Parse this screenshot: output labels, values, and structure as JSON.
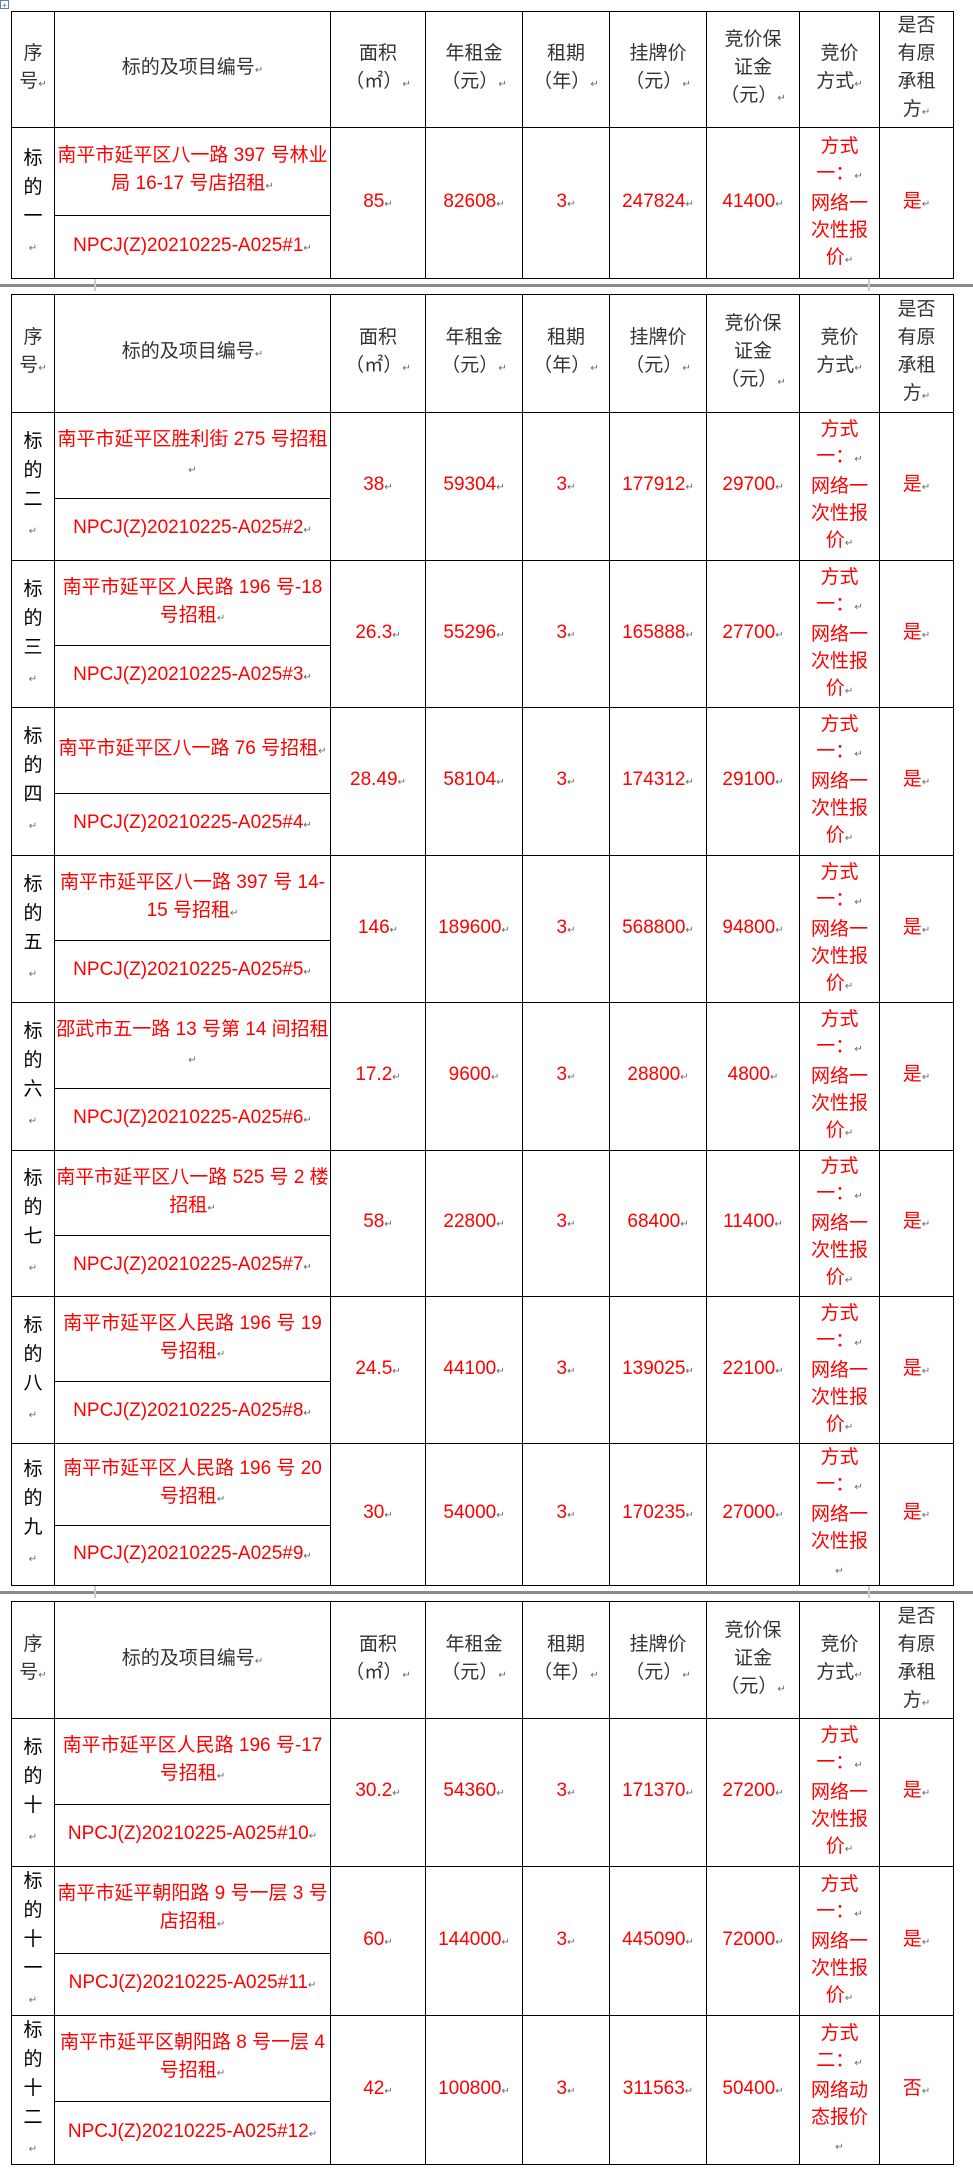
{
  "headers": [
    [
      "序",
      "号"
    ],
    [
      "标的及项目编号"
    ],
    [
      "面积",
      "（㎡）"
    ],
    [
      "年租金",
      "（元）"
    ],
    [
      "租期",
      "（年）"
    ],
    [
      "挂牌价",
      "（元）"
    ],
    [
      "竞价保",
      "证金",
      "（元）"
    ],
    [
      "竞价",
      "方式"
    ],
    [
      "是否",
      "有原",
      "承租",
      "方"
    ]
  ],
  "colors": {
    "text_red": "#ff0000",
    "header_text": "#333333",
    "border": "#000000"
  },
  "tables": [
    {
      "rows": [
        {
          "seq": "标的一",
          "address": "南平市延平区八一路 397 号林业局 16-17 号店招租",
          "code": "NPCJ(Z)20210225-A025#1",
          "area": "85",
          "rent": "82608",
          "term": "3",
          "price": "247824",
          "deposit": "41400",
          "method_a": "方式一：",
          "method_b": "网络一次性报价",
          "original": "是"
        }
      ]
    },
    {
      "rows": [
        {
          "seq": "标的二",
          "address": "南平市延平区胜利街 275 号招租",
          "code": "NPCJ(Z)20210225-A025#2",
          "area": "38",
          "rent": "59304",
          "term": "3",
          "price": "177912",
          "deposit": "29700",
          "method_a": "方式一：",
          "method_b": "网络一次性报价",
          "original": "是"
        },
        {
          "seq": "标的三",
          "address": "南平市延平区人民路 196 号-18 号招租",
          "code": "NPCJ(Z)20210225-A025#3",
          "area": "26.3",
          "rent": "55296",
          "term": "3",
          "price": "165888",
          "deposit": "27700",
          "method_a": "方式一：",
          "method_b": "网络一次性报价",
          "original": "是"
        },
        {
          "seq": "标的四",
          "address": "南平市延平区八一路 76 号招租",
          "code": "NPCJ(Z)20210225-A025#4",
          "area": "28.49",
          "rent": "58104",
          "term": "3",
          "price": "174312",
          "deposit": "29100",
          "method_a": "方式一：",
          "method_b": "网络一次性报价",
          "original": "是"
        },
        {
          "seq": "标的五",
          "address": "南平市延平区八一路 397 号 14-15 号招租",
          "code": "NPCJ(Z)20210225-A025#5",
          "area": "146",
          "rent": "189600",
          "term": "3",
          "price": "568800",
          "deposit": "94800",
          "method_a": "方式一：",
          "method_b": "网络一次性报价",
          "original": "是"
        },
        {
          "seq": "标的六",
          "address": "邵武市五一路 13 号第 14 间招租",
          "code": "NPCJ(Z)20210225-A025#6",
          "area": "17.2",
          "rent": "9600",
          "term": "3",
          "price": "28800",
          "deposit": "4800",
          "method_a": "方式一：",
          "method_b": "网络一次性报价",
          "original": "是"
        },
        {
          "seq": "标的七",
          "address": "南平市延平区八一路 525 号 2 楼招租",
          "code": "NPCJ(Z)20210225-A025#7",
          "area": "58",
          "rent": "22800",
          "term": "3",
          "price": "68400",
          "deposit": "11400",
          "method_a": "方式一：",
          "method_b": "网络一次性报价",
          "original": "是"
        },
        {
          "seq": "标的八",
          "address": "南平市延平区人民路 196 号 19 号招租",
          "code": "NPCJ(Z)20210225-A025#8",
          "area": "24.5",
          "rent": "44100",
          "term": "3",
          "price": "139025",
          "deposit": "22100",
          "method_a": "方式一：",
          "method_b": "网络一次性报价",
          "original": "是"
        },
        {
          "seq": "标的九",
          "address": "南平市延平区人民路 196 号 20 号招租",
          "code": "NPCJ(Z)20210225-A025#9",
          "area": "30",
          "rent": "54000",
          "term": "3",
          "price": "170235",
          "deposit": "27000",
          "method_a": "方式一：",
          "method_b": "网络一次性报",
          "original": "是"
        }
      ]
    },
    {
      "rows": [
        {
          "seq": "标的十",
          "address": "南平市延平区人民路 196 号-17 号招租",
          "code": "NPCJ(Z)20210225-A025#10",
          "area": "30.2",
          "rent": "54360",
          "term": "3",
          "price": "171370",
          "deposit": "27200",
          "method_a": "方式一：",
          "method_b": "网络一次性报价",
          "original": "是"
        },
        {
          "seq": "标的十一",
          "address": "南平市延平朝阳路 9 号一层 3 号店招租",
          "code": "NPCJ(Z)20210225-A025#11",
          "area": "60",
          "rent": "144000",
          "term": "3",
          "price": "445090",
          "deposit": "72000",
          "method_a": "方式一：",
          "method_b": "网络一次性报价",
          "original": "是"
        },
        {
          "seq": "标的十二",
          "address": "南平市延平区朝阳路 8 号一层 4 号招租",
          "code": "NPCJ(Z)20210225-A025#12",
          "area": "42",
          "rent": "100800",
          "term": "3",
          "price": "311563",
          "deposit": "50400",
          "method_a": "方式二：",
          "method_b": "网络动态报价",
          "original": "否"
        }
      ]
    }
  ]
}
